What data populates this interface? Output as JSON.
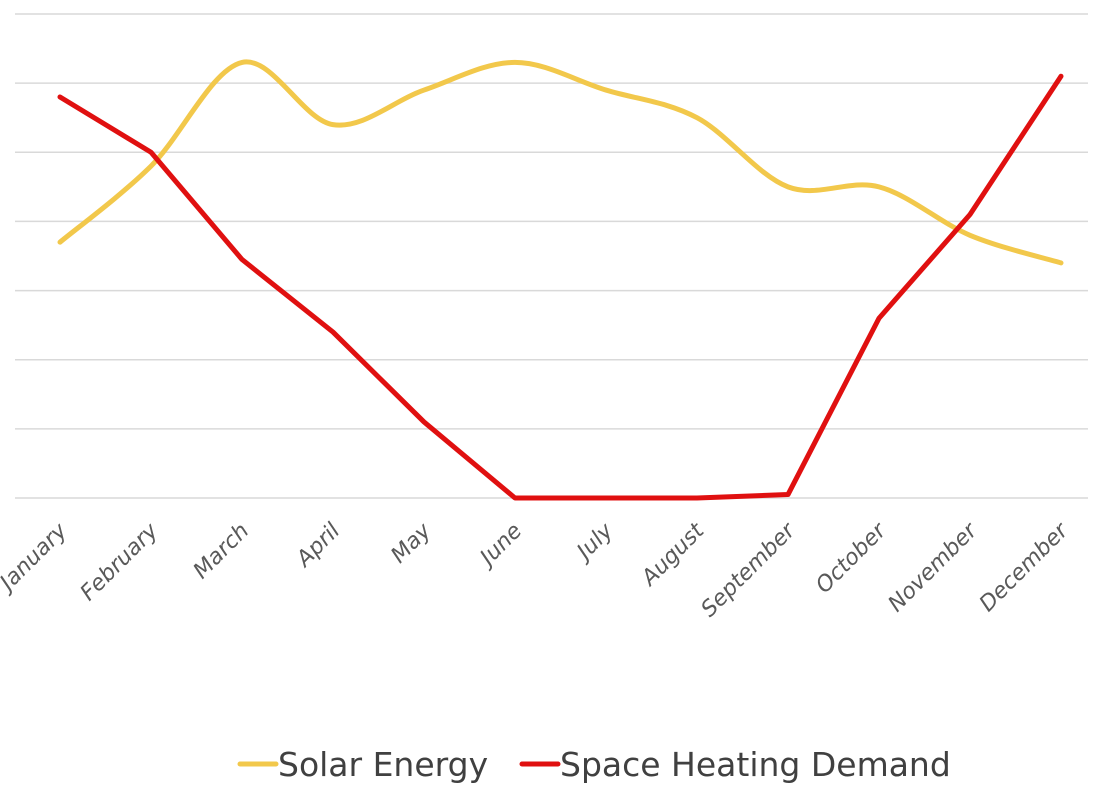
{
  "chart_data": {
    "type": "line",
    "title": "",
    "xlabel": "",
    "ylabel": "",
    "ylim": [
      0,
      7
    ],
    "grid": true,
    "legend_position": "bottom",
    "categories": [
      "January",
      "February",
      "March",
      "April",
      "May",
      "June",
      "July",
      "August",
      "September",
      "October",
      "November",
      "December"
    ],
    "series": [
      {
        "name": "Solar Energy",
        "color": "#f2c84b",
        "smooth": true,
        "values": [
          3.7,
          4.8,
          6.3,
          5.4,
          5.9,
          6.3,
          5.9,
          5.5,
          4.5,
          4.5,
          3.8,
          3.4
        ]
      },
      {
        "name": "Space Heating Demand",
        "color": "#e01010",
        "smooth": false,
        "values": [
          5.8,
          5.0,
          3.45,
          2.4,
          1.1,
          0.0,
          0.0,
          0.0,
          0.05,
          2.6,
          4.1,
          6.1
        ]
      }
    ]
  }
}
